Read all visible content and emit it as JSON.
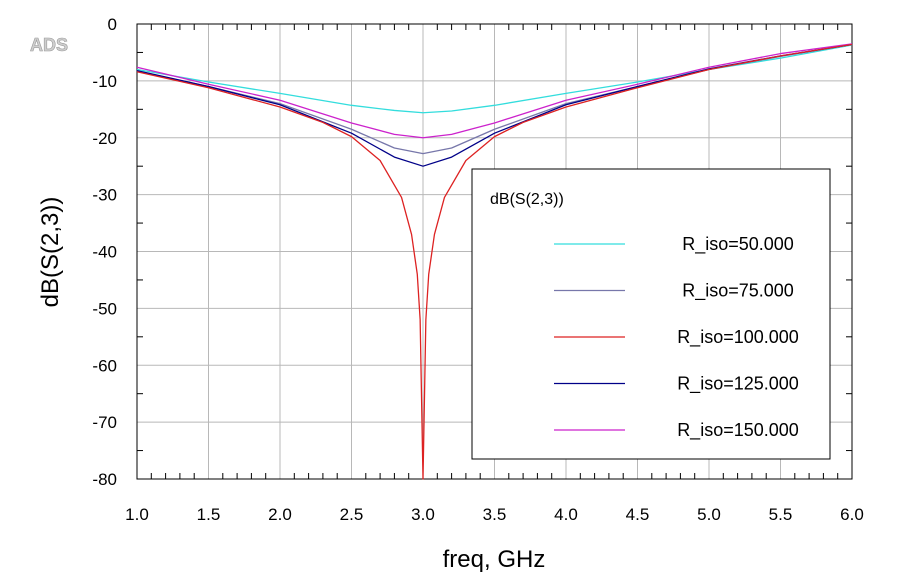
{
  "watermark": "ADS",
  "chart_data": {
    "type": "line",
    "xlabel": "freq, GHz",
    "ylabel": "dB(S(2,3))",
    "xlim": [
      1.0,
      6.0
    ],
    "ylim": [
      -80,
      0
    ],
    "x_ticks": [
      "1.0",
      "1.5",
      "2.0",
      "2.5",
      "3.0",
      "3.5",
      "4.0",
      "4.5",
      "5.0",
      "5.5",
      "6.0"
    ],
    "y_ticks": [
      "0",
      "-10",
      "-20",
      "-30",
      "-40",
      "-50",
      "-60",
      "-70",
      "-80"
    ],
    "grid": true,
    "legend": {
      "title": "dB(S(2,3))",
      "placement": "right"
    },
    "series": [
      {
        "name": "R_iso=50.000",
        "color": "#33dddd",
        "x": [
          1.0,
          1.5,
          2.0,
          2.5,
          2.8,
          3.0,
          3.2,
          3.5,
          4.0,
          4.5,
          5.0,
          5.5,
          6.0
        ],
        "y": [
          -8.0,
          -10.2,
          -12.2,
          -14.3,
          -15.2,
          -15.6,
          -15.3,
          -14.3,
          -12.2,
          -10.2,
          -8.0,
          -6.0,
          -3.7
        ]
      },
      {
        "name": "R_iso=75.000",
        "color": "#7777aa",
        "x": [
          1.0,
          1.5,
          2.0,
          2.5,
          2.8,
          3.0,
          3.2,
          3.5,
          4.0,
          4.5,
          5.0,
          5.5,
          6.0
        ],
        "y": [
          -8.3,
          -11.0,
          -14.0,
          -18.5,
          -21.8,
          -22.8,
          -21.8,
          -18.5,
          -14.0,
          -11.0,
          -8.0,
          -5.7,
          -3.6
        ]
      },
      {
        "name": "R_iso=100.000",
        "color": "#dd2222",
        "x": [
          1.0,
          1.5,
          2.0,
          2.3,
          2.5,
          2.7,
          2.85,
          2.92,
          2.96,
          2.98,
          3.0,
          3.02,
          3.04,
          3.08,
          3.15,
          3.3,
          3.5,
          3.7,
          4.0,
          4.5,
          5.0,
          5.5,
          6.0
        ],
        "y": [
          -8.4,
          -11.2,
          -14.6,
          -17.3,
          -19.8,
          -24.0,
          -30.5,
          -37.0,
          -44.0,
          -52.0,
          -80.0,
          -52.0,
          -44.0,
          -37.0,
          -30.5,
          -24.0,
          -19.8,
          -17.3,
          -14.6,
          -11.2,
          -8.0,
          -5.6,
          -3.6
        ]
      },
      {
        "name": "R_iso=125.000",
        "color": "#000088",
        "x": [
          1.0,
          1.5,
          2.0,
          2.5,
          2.8,
          3.0,
          3.2,
          3.5,
          4.0,
          4.5,
          5.0,
          5.5,
          6.0
        ],
        "y": [
          -8.2,
          -11.0,
          -14.2,
          -19.2,
          -23.4,
          -25.0,
          -23.4,
          -19.2,
          -14.2,
          -11.0,
          -7.9,
          -5.6,
          -3.6
        ]
      },
      {
        "name": "R_iso=150.000",
        "color": "#cc22cc",
        "x": [
          1.0,
          1.5,
          2.0,
          2.5,
          2.8,
          3.0,
          3.2,
          3.5,
          4.0,
          4.5,
          5.0,
          5.5,
          6.0
        ],
        "y": [
          -7.6,
          -10.6,
          -13.4,
          -17.4,
          -19.4,
          -20.0,
          -19.4,
          -17.4,
          -13.4,
          -10.6,
          -7.6,
          -5.2,
          -3.5
        ]
      }
    ]
  }
}
